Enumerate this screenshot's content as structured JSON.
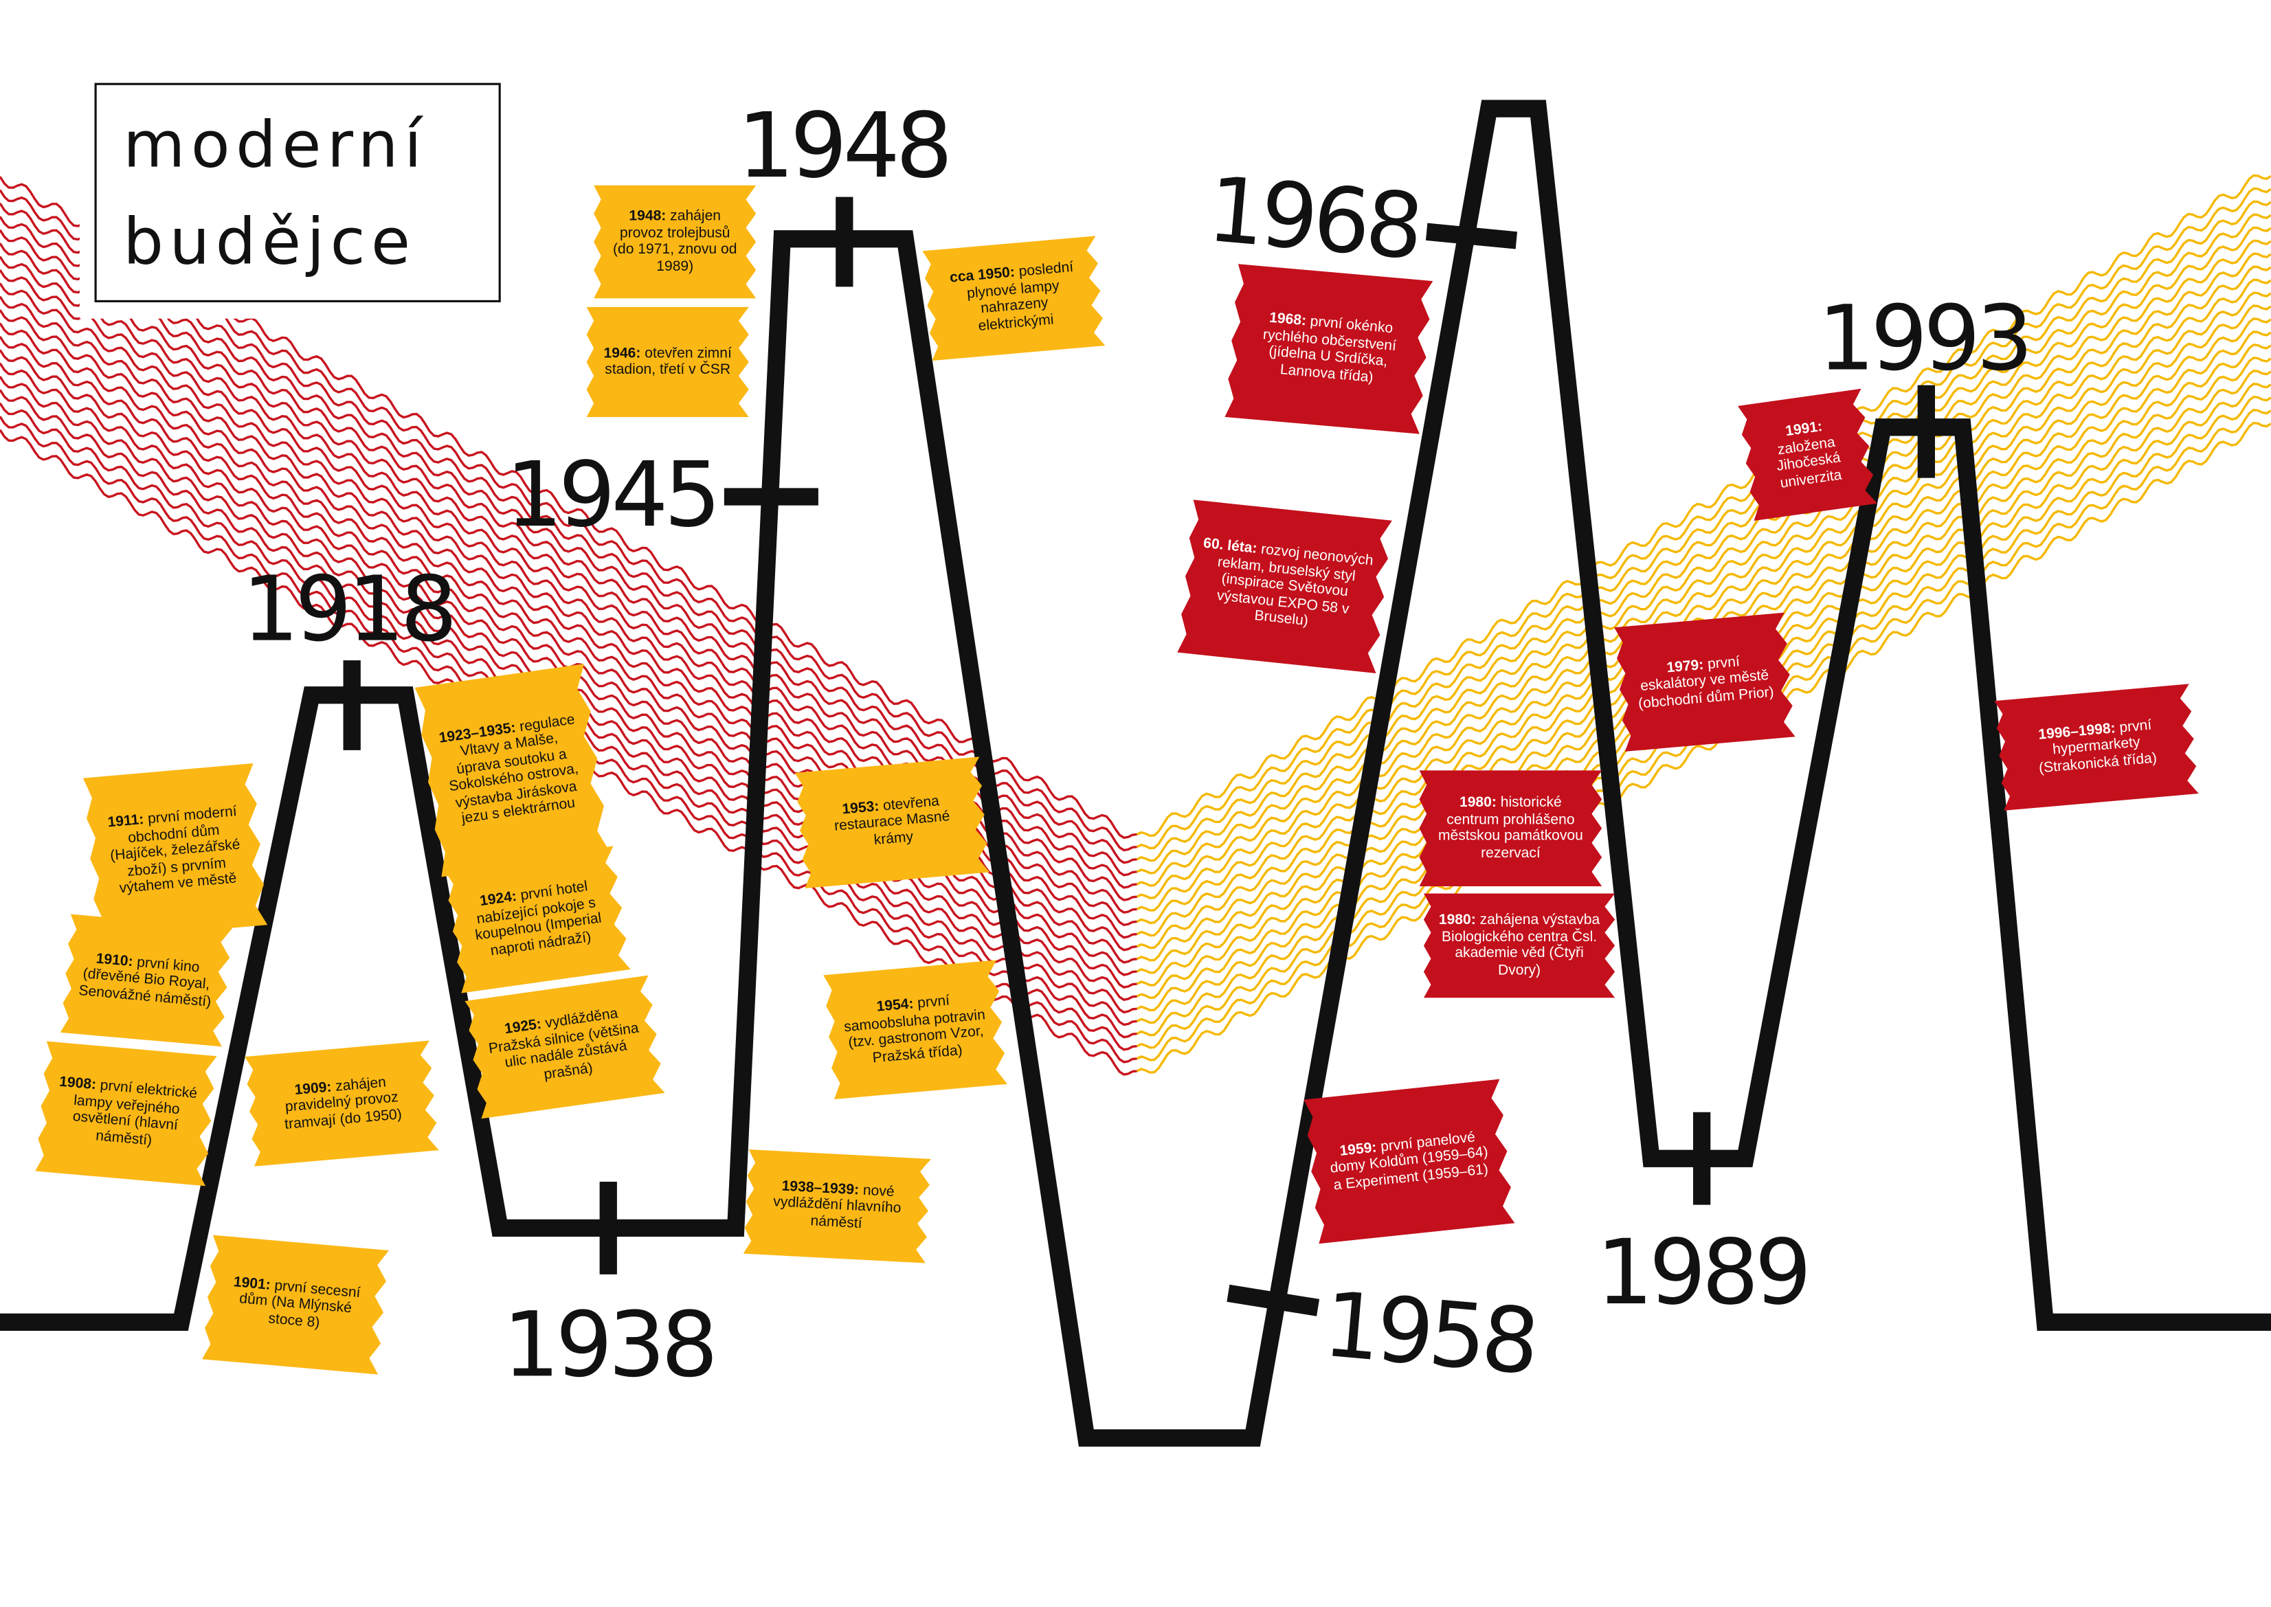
{
  "title": [
    "moderní",
    "budějce"
  ],
  "years": [
    "1918",
    "1945",
    "1948",
    "1938",
    "1968",
    "1958",
    "1989",
    "1993"
  ],
  "notes": [
    {
      "date": "1911:",
      "text": "první moderní obchodní dům (Hajíček, železářské zboží) s prvním výtahem ve městě",
      "color": "#fbb714"
    },
    {
      "date": "1910:",
      "text": "první kino (dřevěné Bio Royal, Senovážné náměstí)",
      "color": "#fbb714"
    },
    {
      "date": "1908:",
      "text": "první elektrické lampy veřejného osvětlení (hlavní náměstí)",
      "color": "#fbb714"
    },
    {
      "date": "1909:",
      "text": "zahájen pravidelný provoz tramvají (do 1950)",
      "color": "#fbb714"
    },
    {
      "date": "1901:",
      "text": "první secesní dům (Na Mlýnské stoce 8)",
      "color": "#fbb714"
    },
    {
      "date": "1923–1935:",
      "text": "regulace Vltavy a Malše, úprava soutoku a Sokolského ostrova, výstavba Jiráskova jezu s elektrárnou",
      "color": "#fbb714"
    },
    {
      "date": "1924:",
      "text": "první hotel nabízející pokoje s koupelnou (Imperial naproti nádraží)",
      "color": "#fbb714"
    },
    {
      "date": "1925:",
      "text": "vydlážděna Pražská silnice (většina ulic nadále zůstává prašná)",
      "color": "#fbb714"
    },
    {
      "date": "1948:",
      "text": "zahájen provoz trolejbusů (do 1971, znovu od 1989)",
      "color": "#fbb714"
    },
    {
      "date": "1946:",
      "text": "otevřen zimní stadion, třetí v ČSR",
      "color": "#fbb714"
    },
    {
      "date": "cca 1950:",
      "text": "poslední plynové lampy nahrazeny elektrickými",
      "color": "#fbb714"
    },
    {
      "date": "1953:",
      "text": "otevřena restaurace Masné krámy",
      "color": "#fbb714"
    },
    {
      "date": "1954:",
      "text": "první samoobsluha potravin (tzv. gastronom Vzor, Pražská třída)",
      "color": "#fbb714"
    },
    {
      "date": "1938–1939:",
      "text": "nové vydláždění hlavního náměstí",
      "color": "#fbb714"
    },
    {
      "date": "1968:",
      "text": "první okénko rychlého občerstvení (jídelna U Srdíčka, Lannova třída)",
      "color": "#c3101c"
    },
    {
      "date": "60. léta:",
      "text": "rozvoj neonových reklam, bruselský styl (inspirace Světovou výstavou EXPO 58 v Bruselu)",
      "color": "#c3101c"
    },
    {
      "date": "1959:",
      "text": "první panelové domy Koldům (1959–64) a Experiment (1959–61)",
      "color": "#c3101c"
    },
    {
      "date": "1980:",
      "text": "historické centrum prohlášeno městskou památkovou rezervací",
      "color": "#c3101c"
    },
    {
      "date": "1980:",
      "text": "zahájena výstavba Biologického centra Čsl. akademie věd (Čtyři Dvory)",
      "color": "#c3101c"
    },
    {
      "date": "1979:",
      "text": "první eskalátory ve městě (obchodní dům Prior)",
      "color": "#c3101c"
    },
    {
      "date": "1991:",
      "text": "založena Jihočeská univerzita",
      "color": "#c3101c"
    },
    {
      "date": "1996–1998:",
      "text": "první hypermarkety (Strakonická třída)",
      "color": "#c3101c"
    }
  ]
}
